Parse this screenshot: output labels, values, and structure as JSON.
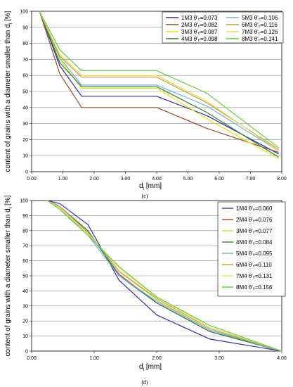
{
  "chart_data": [
    {
      "type": "line",
      "panel": "c",
      "caption": "(c)",
      "xlabel": "d",
      "xlabel_sub": "i",
      "xlabel_unit": " [mm]",
      "ylabel": "content of grains with a diameter smaller than d",
      "ylabel_sub": "i",
      "ylabel_unit": " [%]",
      "xlim": [
        0,
        8
      ],
      "ylim": [
        0,
        100
      ],
      "xticks": [
        "0.00",
        "1.00",
        "2.00",
        "3.00",
        "4.00",
        "5.00",
        "6.00",
        "7.00",
        "8.00"
      ],
      "yticks": [
        "0",
        "10",
        "20",
        "30",
        "40",
        "50",
        "60",
        "70",
        "80",
        "90",
        "100"
      ],
      "grid": "horizontal",
      "legend_position": "top-right",
      "legend_columns": 2,
      "series": [
        {
          "name": "1M3 θ'ₑ=0.073",
          "color": "#2a2aa8",
          "x": [
            0.25,
            0.9,
            1.6,
            4.0,
            5.6,
            7.9
          ],
          "y": [
            100,
            66,
            47,
            47,
            35,
            11
          ]
        },
        {
          "name": "2M3 θ'ₑ=0.082",
          "color": "#9a4a2a",
          "x": [
            0.25,
            0.9,
            1.6,
            4.0,
            5.6,
            7.9
          ],
          "y": [
            100,
            61,
            40,
            40,
            27,
            12
          ]
        },
        {
          "name": "3M3 θ'ₑ=0.087",
          "color": "#e8e800",
          "x": [
            0.25,
            0.9,
            1.6,
            4.0,
            5.6,
            7.9
          ],
          "y": [
            100,
            70,
            52,
            52,
            33,
            8
          ]
        },
        {
          "name": "4M3 θ'ₑ=0.098",
          "color": "#2f7f3f",
          "x": [
            0.25,
            0.9,
            1.6,
            4.0,
            5.6,
            7.9
          ],
          "y": [
            100,
            68,
            53,
            53,
            37,
            9
          ]
        },
        {
          "name": "5M3 θ'ₑ=0.106",
          "color": "#6aaee8",
          "x": [
            0.25,
            0.9,
            1.6,
            4.0,
            5.6,
            7.9
          ],
          "y": [
            100,
            71,
            54,
            54,
            41,
            13
          ]
        },
        {
          "name": "6M3 θ'ₑ=0.116",
          "color": "#c89a3a",
          "x": [
            0.25,
            0.9,
            1.6,
            4.0,
            5.6,
            7.9
          ],
          "y": [
            100,
            72,
            59,
            59,
            43,
            14
          ]
        },
        {
          "name": "7M3 θ'ₑ=0.126",
          "color": "#e0e040",
          "x": [
            0.25,
            0.9,
            1.6,
            4.0,
            5.6,
            7.9
          ],
          "y": [
            100,
            73,
            60,
            60,
            44,
            13
          ]
        },
        {
          "name": "8M3 θ'ₑ=0.141",
          "color": "#5ad23a",
          "x": [
            0.25,
            0.9,
            1.6,
            4.0,
            5.6,
            7.9
          ],
          "y": [
            100,
            76,
            63,
            63,
            49,
            15
          ]
        }
      ]
    },
    {
      "type": "line",
      "panel": "d",
      "caption": "(d)",
      "xlabel": "d",
      "xlabel_sub": "i",
      "xlabel_unit": " [mm]",
      "ylabel": "content of grains with a diameter smaller than d",
      "ylabel_sub": "i",
      "ylabel_unit": " [%]",
      "xlim": [
        0,
        4
      ],
      "ylim": [
        0,
        100
      ],
      "xticks": [
        "0.00",
        "1.00",
        "2.00",
        "3.00",
        "4.00"
      ],
      "yticks": [
        "0",
        "10",
        "20",
        "30",
        "40",
        "50",
        "60",
        "70",
        "80",
        "90",
        "100"
      ],
      "grid": "horizontal",
      "legend_position": "top-right",
      "legend_columns": 1,
      "series": [
        {
          "name": "1M4 θ'ₑ=0.060",
          "color": "#2a2ac8",
          "x": [
            0.25,
            0.45,
            0.9,
            1.4,
            2.0,
            2.85,
            4.0
          ],
          "y": [
            100,
            98,
            84,
            47,
            24,
            8,
            0
          ]
        },
        {
          "name": "2M4 θ'ₑ=0.076",
          "color": "#a84a2a",
          "x": [
            0.25,
            0.45,
            0.9,
            1.4,
            2.0,
            2.85,
            4.0
          ],
          "y": [
            100,
            96,
            79,
            51,
            32,
            13,
            0
          ]
        },
        {
          "name": "3M4 θ'ₑ=0.077",
          "color": "#d8d820",
          "x": [
            0.25,
            0.45,
            0.9,
            1.4,
            2.0,
            2.85,
            4.0
          ],
          "y": [
            100,
            95,
            78,
            53,
            34,
            14,
            0
          ]
        },
        {
          "name": "4M4 θ'ₑ=0.084",
          "color": "#2f7f3f",
          "x": [
            0.25,
            0.45,
            0.9,
            1.4,
            2.0,
            2.85,
            4.0
          ],
          "y": [
            100,
            96,
            80,
            50,
            32,
            13,
            0
          ]
        },
        {
          "name": "5M4 θ'ₑ=0.095",
          "color": "#6aaee8",
          "x": [
            0.25,
            0.45,
            0.9,
            1.4,
            2.0,
            2.85,
            4.0
          ],
          "y": [
            100,
            95,
            77,
            50,
            33,
            14,
            0
          ]
        },
        {
          "name": "6M4 θ'ₑ=0.110",
          "color": "#c89a3a",
          "x": [
            0.25,
            0.45,
            0.9,
            1.4,
            2.0,
            2.85,
            4.0
          ],
          "y": [
            100,
            96,
            79,
            53,
            35,
            15,
            0
          ]
        },
        {
          "name": "7M4 θ'ₑ=0.131",
          "color": "#e8e860",
          "x": [
            0.25,
            0.45,
            0.9,
            1.4,
            2.0,
            2.85,
            4.0
          ],
          "y": [
            100,
            95,
            78,
            55,
            36,
            16,
            0
          ]
        },
        {
          "name": "8M4 θ'ₑ=0.156",
          "color": "#5ad23a",
          "x": [
            0.25,
            0.45,
            0.9,
            1.4,
            2.0,
            2.85,
            4.0
          ],
          "y": [
            100,
            94,
            77,
            56,
            36,
            17,
            0
          ]
        }
      ]
    }
  ]
}
